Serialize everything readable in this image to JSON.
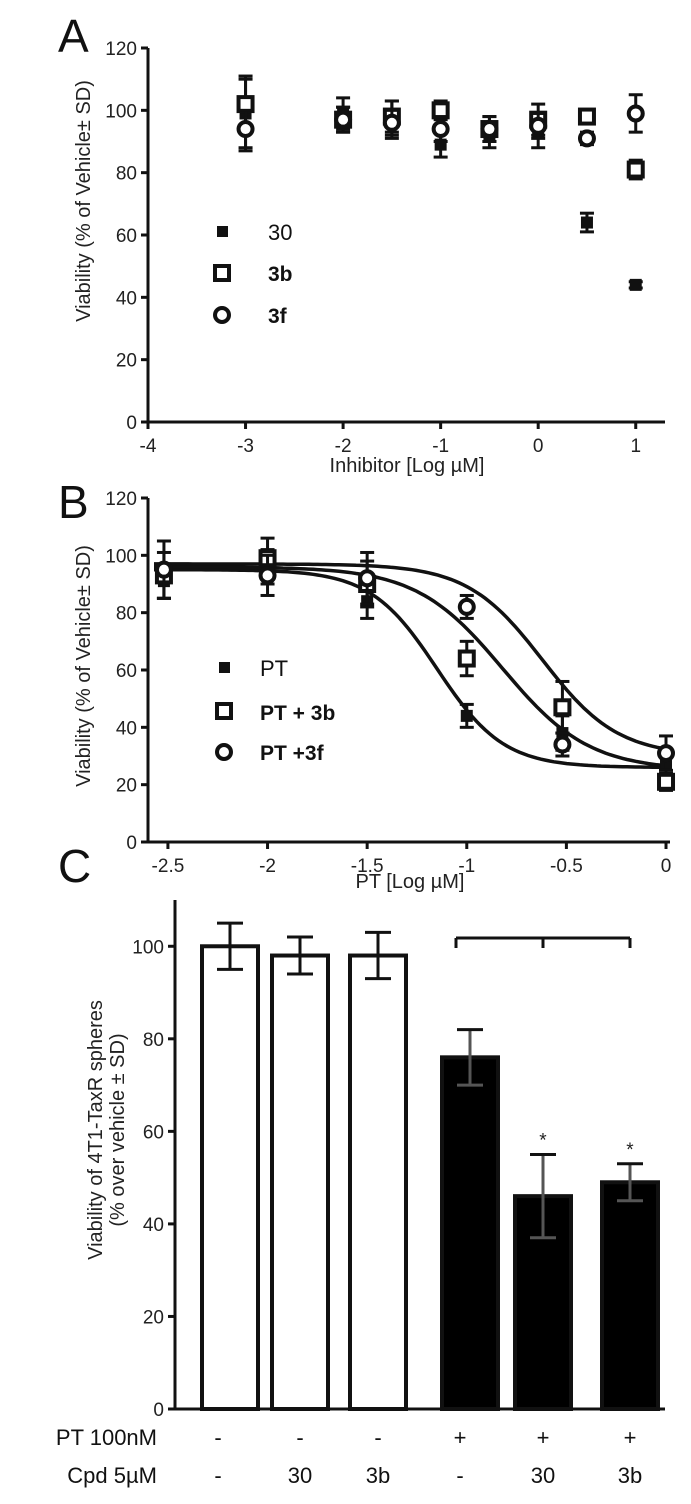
{
  "chart_data": [
    {
      "panel": "A",
      "type": "scatter",
      "xlabel": "Inhibitor [Log µM]",
      "ylabel": "Viability (% of Vehicle± SD)",
      "xlim": [
        -4,
        1.3
      ],
      "ylim": [
        0,
        120
      ],
      "xticks": [
        "-4",
        "-3",
        "-2",
        "-1",
        "0",
        "1"
      ],
      "yticks": [
        "0",
        "20",
        "40",
        "60",
        "80",
        "100",
        "120"
      ],
      "series": [
        {
          "name": "30",
          "marker": "filled-square",
          "x": [
            -3,
            -2,
            -1.5,
            -1,
            -0.5,
            0,
            0.5,
            1
          ],
          "y": [
            99,
            99,
            97,
            89,
            92,
            93,
            64,
            44
          ],
          "err": [
            12,
            5,
            6,
            4,
            4,
            5,
            3,
            1
          ]
        },
        {
          "name": "3b",
          "marker": "open-square",
          "x": [
            -3,
            -2,
            -1.5,
            -1,
            -0.5,
            0,
            0.5,
            1
          ],
          "y": [
            102,
            97,
            98,
            100,
            94,
            97,
            98,
            81
          ],
          "err": [
            8,
            4,
            5,
            3,
            4,
            5,
            2,
            3
          ]
        },
        {
          "name": "3f",
          "marker": "open-circle",
          "x": [
            -3,
            -2,
            -1.5,
            -1,
            -0.5,
            0,
            0.5,
            1
          ],
          "y": [
            94,
            97,
            96,
            94,
            94,
            95,
            91,
            99
          ],
          "err": [
            6,
            4,
            4,
            4,
            4,
            4,
            2,
            6
          ]
        }
      ]
    },
    {
      "panel": "B",
      "type": "scatter",
      "xlabel": "PT [Log µM]",
      "ylabel": "Viability (% of Vehicle± SD)",
      "xlim": [
        -2.6,
        0.02
      ],
      "ylim": [
        0,
        120
      ],
      "xticks": [
        "-2.5",
        "-2",
        "-1.5",
        "-1",
        "-0.5",
        "0"
      ],
      "yticks": [
        "0",
        "20",
        "40",
        "60",
        "80",
        "100",
        "120"
      ],
      "series": [
        {
          "name": "PT",
          "marker": "filled-square",
          "x": [
            -2.52,
            -2,
            -1.5,
            -1,
            -0.52,
            0
          ],
          "y": [
            91,
            96,
            84,
            44,
            38,
            27
          ],
          "err": [
            6,
            6,
            6,
            4,
            6,
            4
          ],
          "fit": {
            "bottom": 26,
            "top": 95,
            "logIC50": -1.15,
            "hill": 2.6
          }
        },
        {
          "name": "PT + 3b",
          "marker": "open-square",
          "x": [
            -2.52,
            -2,
            -1.5,
            -1,
            -0.52,
            0
          ],
          "y": [
            93,
            99,
            90,
            64,
            47,
            21
          ],
          "err": [
            8,
            7,
            8,
            6,
            9,
            3
          ],
          "fit": {
            "bottom": 25,
            "top": 96,
            "logIC50": -0.82,
            "hill": 2.0
          }
        },
        {
          "name": "PT +3f",
          "marker": "open-circle",
          "x": [
            -2.52,
            -2,
            -1.5,
            -1,
            -0.52,
            0
          ],
          "y": [
            95,
            93,
            92,
            82,
            34,
            31
          ],
          "err": [
            10,
            7,
            9,
            4,
            4,
            6
          ],
          "fit": {
            "bottom": 30,
            "top": 97,
            "logIC50": -0.62,
            "hill": 2.3
          }
        }
      ]
    },
    {
      "panel": "C",
      "type": "bar",
      "ylabel_line1": "Viability of 4T1-TaxR spheres",
      "ylabel_line2": "(% over vehicle ± SD)",
      "ylim": [
        0,
        110
      ],
      "yticks": [
        "0",
        "20",
        "40",
        "60",
        "80",
        "100"
      ],
      "values": [
        100,
        98,
        98,
        76,
        46,
        49
      ],
      "errors": [
        5,
        4,
        5,
        6,
        9,
        4
      ],
      "fills": [
        "#ffffff",
        "#ffffff",
        "#ffffff",
        "#000000",
        "#000000",
        "#000000"
      ],
      "significance": [
        "",
        "",
        "",
        "",
        "*",
        "*"
      ],
      "bracket": {
        "from_bar": 3,
        "to_bar": 5,
        "mid_tick_bar": 4
      },
      "conditions": [
        {
          "label": "PT 100nM",
          "values": [
            "-",
            "-",
            "-",
            "+",
            "+",
            "+"
          ]
        },
        {
          "label": "Cpd 5µM",
          "values": [
            "-",
            "30",
            "3b",
            "-",
            "30",
            "3b"
          ]
        }
      ]
    }
  ],
  "panel_letters": {
    "a": "A",
    "b": "B",
    "c": "C"
  },
  "legends": {
    "a": [
      "30",
      "3b",
      "3f"
    ],
    "b": [
      "PT",
      "PT + 3b",
      "PT +3f"
    ]
  }
}
